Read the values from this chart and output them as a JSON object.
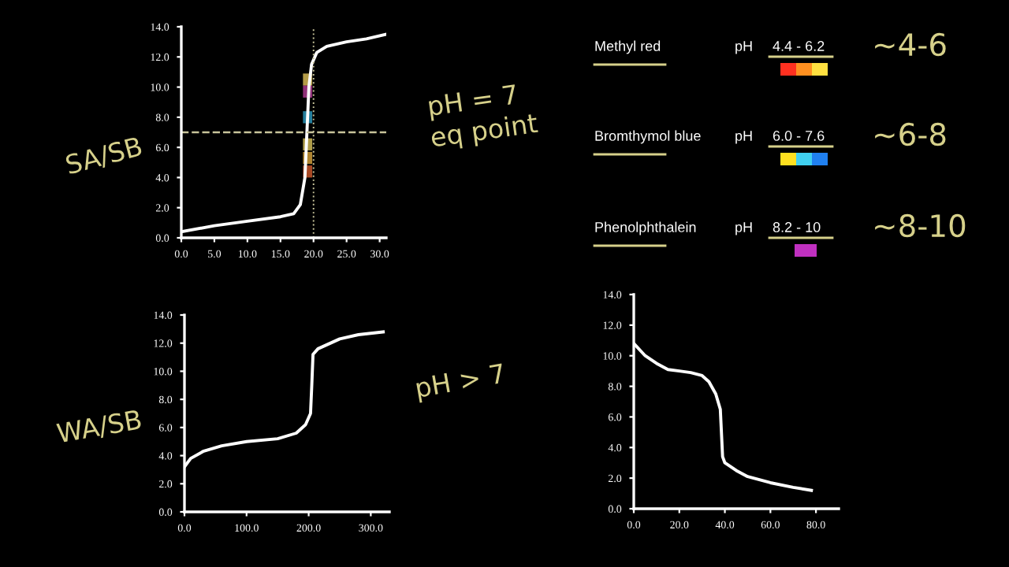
{
  "chart_data": [
    {
      "type": "line",
      "x": [
        0,
        5,
        10,
        15,
        17,
        18,
        18.7,
        19,
        19.3,
        19.7,
        20.5,
        22,
        25,
        28,
        31
      ],
      "series": [
        {
          "color": "#ffffff",
          "values": [
            0.4,
            0.8,
            1.1,
            1.4,
            1.6,
            2.2,
            4.0,
            7.0,
            10.0,
            11.5,
            12.3,
            12.7,
            13.0,
            13.2,
            13.5
          ]
        }
      ],
      "xlim": [
        0,
        31
      ],
      "xticks": [
        {
          "value": 0,
          "label": "0.0"
        },
        {
          "value": 5,
          "label": "5.0"
        },
        {
          "value": 10,
          "label": "10.0"
        },
        {
          "value": 15,
          "label": "15.0"
        },
        {
          "value": 20,
          "label": "20.0"
        },
        {
          "value": 25,
          "label": "25.0"
        },
        {
          "value": 30,
          "label": "30.0"
        }
      ],
      "ylim": [
        0,
        14
      ],
      "yticks": [
        {
          "value": 0,
          "label": "0.0"
        },
        {
          "value": 2,
          "label": "2.0"
        },
        {
          "value": 4,
          "label": "4.0"
        },
        {
          "value": 6,
          "label": "6.0"
        },
        {
          "value": 8,
          "label": "8.0"
        },
        {
          "value": 10,
          "label": "10.0"
        },
        {
          "value": 12,
          "label": "12.0"
        },
        {
          "value": 14,
          "label": "14.0"
        }
      ],
      "ref_lines": [
        {
          "axis": "y",
          "value": 7,
          "color": "#c8c49a",
          "line_style": "dashed"
        },
        {
          "axis": "x",
          "value": 20,
          "color": "#c8c49a",
          "line_style": "dotted"
        }
      ],
      "annotations": [
        "SA/SB",
        "pH = 7",
        "eq point"
      ],
      "marker": "none",
      "line_style": "solid",
      "grid": false,
      "legend": false
    },
    {
      "type": "other",
      "annotations": [
        "Methyl red",
        "pH",
        "4.4 - 6.2",
        "~4-6",
        "Bromthymol blue",
        "pH",
        "6.0 - 7.6",
        "~6-8",
        "Phenolphthalein",
        "pH",
        "8.2 - 10",
        "~8-10"
      ]
    },
    {
      "type": "line",
      "x": [
        0,
        10,
        30,
        60,
        100,
        150,
        180,
        195,
        203,
        205,
        207,
        215,
        250,
        280,
        320
      ],
      "series": [
        {
          "color": "#ffffff",
          "values": [
            3.2,
            3.8,
            4.3,
            4.7,
            5.0,
            5.2,
            5.6,
            6.2,
            7.0,
            9.0,
            11.2,
            11.6,
            12.3,
            12.6,
            12.8
          ]
        }
      ],
      "xlim": [
        0,
        330
      ],
      "xticks": [
        {
          "value": 0,
          "label": "0.0"
        },
        {
          "value": 100,
          "label": "100.0"
        },
        {
          "value": 200,
          "label": "200.0"
        },
        {
          "value": 300,
          "label": "300.0"
        }
      ],
      "ylim": [
        0,
        14
      ],
      "yticks": [
        {
          "value": 0,
          "label": "0.0"
        },
        {
          "value": 2,
          "label": "2.0"
        },
        {
          "value": 4,
          "label": "4.0"
        },
        {
          "value": 6,
          "label": "6.0"
        },
        {
          "value": 8,
          "label": "8.0"
        },
        {
          "value": 10,
          "label": "10.0"
        },
        {
          "value": 12,
          "label": "12.0"
        },
        {
          "value": 14,
          "label": "14.0"
        }
      ],
      "annotations": [
        "WA/SB",
        "pH > 7"
      ],
      "marker": "none",
      "line_style": "solid",
      "grid": false,
      "legend": false
    },
    {
      "type": "line",
      "x": [
        0,
        5,
        10,
        15,
        20,
        25,
        30,
        33,
        36,
        38,
        39,
        40,
        45,
        50,
        60,
        70,
        78
      ],
      "series": [
        {
          "color": "#ffffff",
          "values": [
            10.8,
            10.0,
            9.5,
            9.1,
            9.0,
            8.9,
            8.7,
            8.3,
            7.5,
            6.5,
            3.4,
            3.0,
            2.5,
            2.1,
            1.7,
            1.4,
            1.2
          ]
        }
      ],
      "xlim": [
        0,
        90
      ],
      "xticks": [
        {
          "value": 0,
          "label": "0.0"
        },
        {
          "value": 20,
          "label": "20.0"
        },
        {
          "value": 40,
          "label": "40.0"
        },
        {
          "value": 60,
          "label": "60.0"
        },
        {
          "value": 80,
          "label": "80.0"
        }
      ],
      "ylim": [
        0,
        14
      ],
      "yticks": [
        {
          "value": 0,
          "label": "0.0"
        },
        {
          "value": 2,
          "label": "2.0"
        },
        {
          "value": 4,
          "label": "4.0"
        },
        {
          "value": 6,
          "label": "6.0"
        },
        {
          "value": 8,
          "label": "8.0"
        },
        {
          "value": 10,
          "label": "10.0"
        },
        {
          "value": 12,
          "label": "12.0"
        },
        {
          "value": 14,
          "label": "14.0"
        }
      ],
      "marker": "none",
      "line_style": "solid",
      "grid": false,
      "legend": false
    }
  ]
}
